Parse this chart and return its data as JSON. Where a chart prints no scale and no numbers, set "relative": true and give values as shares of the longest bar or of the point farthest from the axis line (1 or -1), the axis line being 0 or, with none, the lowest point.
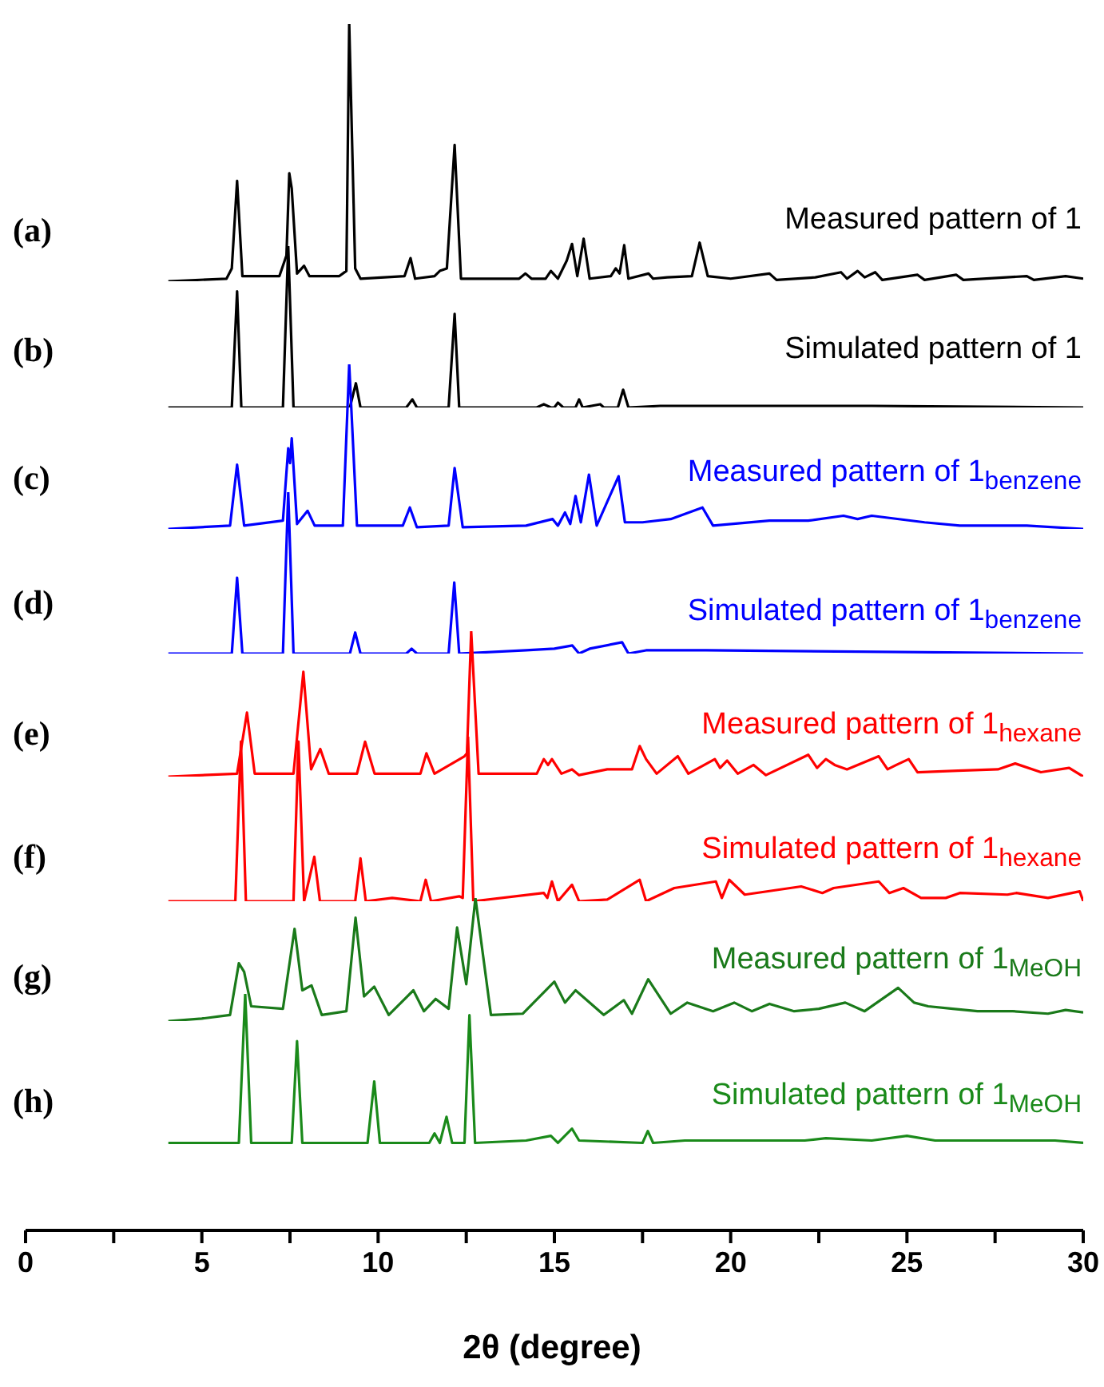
{
  "chart_data": [
    {
      "type": "line",
      "title": "(a)",
      "relative": true,
      "xlim": [
        0,
        30
      ],
      "tick_labels": false,
      "x": [
        4.05,
        5.7,
        5.85,
        6.0,
        6.15,
        7.2,
        7.4,
        7.48,
        7.55,
        7.7,
        7.9,
        8.05,
        8.9,
        9.1,
        9.18,
        9.35,
        9.5,
        10.75,
        10.92,
        11.05,
        11.6,
        11.75,
        11.95,
        12.17,
        12.35,
        14.0,
        14.18,
        14.35,
        14.75,
        14.9,
        15.1,
        15.35,
        15.5,
        15.65,
        15.83,
        16.0,
        16.6,
        16.74,
        16.85,
        16.98,
        17.1,
        17.67,
        17.8,
        18.2,
        18.9,
        19.12,
        19.35,
        20.0,
        21.1,
        21.3,
        22.4,
        23.13,
        23.3,
        23.6,
        23.8,
        24.1,
        24.3,
        25.3,
        25.5,
        26.4,
        26.6,
        28.4,
        28.6,
        29.5,
        30
      ],
      "series": [
        {
          "name": "Measured pattern of 1",
          "color": "#000000",
          "values": [
            0,
            0.01,
            0.05,
            0.39,
            0.02,
            0.02,
            0.1,
            0.42,
            0.36,
            0.03,
            0.06,
            0.02,
            0.02,
            0.04,
            1.0,
            0.05,
            0.01,
            0.02,
            0.09,
            0.01,
            0.02,
            0.04,
            0.05,
            0.53,
            0.01,
            0.01,
            0.03,
            0.01,
            0.01,
            0.04,
            0.01,
            0.08,
            0.145,
            0.02,
            0.165,
            0.01,
            0.02,
            0.05,
            0.03,
            0.14,
            0.01,
            0.03,
            0.01,
            0.015,
            0.02,
            0.15,
            0.02,
            0.01,
            0.03,
            0.005,
            0.015,
            0.035,
            0.01,
            0.04,
            0.015,
            0.035,
            0.005,
            0.025,
            0.005,
            0.025,
            0.005,
            0.02,
            0.005,
            0.02,
            0.01
          ]
        }
      ]
    },
    {
      "type": "line",
      "title": "(b)",
      "relative": true,
      "xlim": [
        0,
        30
      ],
      "tick_labels": false,
      "x": [
        4.05,
        5.85,
        6.0,
        6.12,
        7.3,
        7.45,
        7.6,
        9.2,
        9.37,
        9.5,
        10.8,
        10.97,
        11.1,
        12.0,
        12.17,
        12.3,
        14.5,
        14.7,
        14.9,
        15.0,
        15.1,
        15.25,
        15.6,
        15.7,
        15.8,
        16.3,
        16.4,
        16.8,
        16.95,
        17.1,
        18.0,
        19.5,
        24.0,
        30
      ],
      "series": [
        {
          "name": "Simulated pattern of 1",
          "color": "#000000",
          "values": [
            0,
            0,
            0.72,
            0,
            0,
            1,
            0,
            0,
            0.15,
            0,
            0,
            0.05,
            0,
            0,
            0.58,
            0,
            0,
            0.02,
            0,
            0,
            0.03,
            0,
            0,
            0.05,
            0,
            0.02,
            0,
            0,
            0.11,
            0,
            0.01,
            0.01,
            0.01,
            0
          ]
        }
      ]
    },
    {
      "type": "line",
      "title": "(c)",
      "relative": true,
      "xlim": [
        0,
        30
      ],
      "tick_labels": false,
      "x": [
        4.05,
        5.8,
        6.0,
        6.2,
        7.3,
        7.45,
        7.5,
        7.55,
        7.7,
        8.0,
        8.2,
        9.0,
        9.18,
        9.4,
        10.7,
        10.9,
        11.1,
        12.0,
        12.17,
        12.4,
        14.2,
        14.95,
        15.1,
        15.3,
        15.45,
        15.6,
        15.75,
        15.98,
        16.2,
        16.82,
        17.0,
        17.5,
        18.3,
        19.2,
        19.5,
        21.1,
        21.8,
        22.2,
        23.2,
        23.6,
        24.0,
        25.5,
        26.5,
        28.4,
        30
      ],
      "series": [
        {
          "name": "Measured pattern of 1$_{benzene}$",
          "color": "#0000ff",
          "values": [
            0,
            0.02,
            0.39,
            0.02,
            0.05,
            0.49,
            0.4,
            0.55,
            0.03,
            0.11,
            0.02,
            0.02,
            1,
            0.02,
            0.02,
            0.13,
            0.01,
            0.02,
            0.37,
            0.01,
            0.02,
            0.06,
            0.02,
            0.1,
            0.03,
            0.2,
            0.04,
            0.33,
            0.02,
            0.32,
            0.04,
            0.04,
            0.06,
            0.13,
            0.02,
            0.05,
            0.05,
            0.05,
            0.08,
            0.06,
            0.08,
            0.04,
            0.02,
            0.02,
            0
          ]
        }
      ]
    },
    {
      "type": "line",
      "title": "(d)",
      "relative": true,
      "xlim": [
        0,
        30
      ],
      "tick_labels": false,
      "x": [
        4.05,
        5.85,
        6.0,
        6.15,
        7.3,
        7.45,
        7.6,
        9.2,
        9.35,
        9.5,
        10.8,
        10.95,
        11.1,
        12.0,
        12.16,
        12.3,
        14.2,
        15.0,
        15.51,
        15.7,
        16.0,
        16.92,
        17.1,
        17.6,
        18.3,
        19.3,
        30
      ],
      "series": [
        {
          "name": "Simulated pattern of 1$_{benzene}$",
          "color": "#0000ff",
          "values": [
            0,
            0,
            0.47,
            0,
            0,
            1,
            0,
            0,
            0.13,
            0,
            0,
            0.03,
            0,
            0,
            0.44,
            0,
            0.02,
            0.03,
            0.05,
            0,
            0.03,
            0.07,
            0,
            0.02,
            0.02,
            0.02,
            0
          ]
        }
      ]
    },
    {
      "type": "line",
      "title": "(e)",
      "relative": true,
      "xlim": [
        0,
        30
      ],
      "tick_labels": false,
      "x": [
        4.05,
        6.0,
        6.28,
        6.5,
        7.6,
        7.88,
        8.1,
        8.36,
        8.6,
        9.4,
        9.63,
        9.9,
        11.2,
        11.37,
        11.6,
        12.45,
        12.52,
        12.64,
        12.85,
        14.5,
        14.7,
        14.82,
        14.93,
        15.2,
        15.5,
        15.7,
        16.5,
        17.2,
        17.42,
        17.6,
        17.9,
        18.5,
        18.8,
        19.55,
        19.7,
        19.9,
        20.2,
        20.65,
        21.0,
        22.2,
        22.45,
        22.7,
        22.95,
        23.3,
        24.2,
        24.45,
        24.7,
        25.05,
        25.3,
        26.44,
        27.58,
        28.07,
        28.8,
        29.6,
        30
      ],
      "series": [
        {
          "name": "Measured pattern of 1$_{hexane}$",
          "color": "#ff0000",
          "values": [
            0,
            0.02,
            0.44,
            0.02,
            0.02,
            0.72,
            0.05,
            0.19,
            0.02,
            0.02,
            0.24,
            0.02,
            0.02,
            0.16,
            0.02,
            0.14,
            0.16,
            1,
            0.02,
            0.02,
            0.12,
            0.08,
            0.12,
            0.02,
            0.05,
            0.01,
            0.05,
            0.05,
            0.21,
            0.12,
            0.02,
            0.14,
            0.02,
            0.12,
            0.06,
            0.11,
            0.02,
            0.08,
            0.01,
            0.15,
            0.06,
            0.12,
            0.08,
            0.05,
            0.14,
            0.05,
            0.08,
            0.12,
            0.03,
            0.04,
            0.05,
            0.09,
            0.03,
            0.06,
            0
          ]
        }
      ]
    },
    {
      "type": "line",
      "title": "(f)",
      "relative": true,
      "xlim": [
        0,
        30
      ],
      "tick_labels": false,
      "x": [
        4.05,
        5.95,
        6.11,
        6.25,
        7.6,
        7.74,
        7.9,
        8.19,
        8.35,
        9.35,
        9.5,
        9.65,
        10.4,
        11.2,
        11.35,
        11.5,
        12.3,
        12.4,
        12.55,
        12.7,
        14.7,
        14.8,
        14.93,
        15.1,
        15.5,
        15.7,
        16.5,
        17.42,
        17.6,
        18.4,
        19.58,
        19.75,
        19.96,
        20.4,
        22.0,
        22.6,
        22.92,
        24.2,
        24.5,
        24.9,
        25.4,
        26.1,
        26.5,
        27.85,
        28.1,
        29.0,
        29.9,
        30
      ],
      "series": [
        {
          "name": "Simulated pattern of 1$_{hexane}$",
          "color": "#ff0000",
          "values": [
            0,
            0,
            0.97,
            0,
            0,
            0.97,
            0,
            0.27,
            0,
            0,
            0.26,
            0,
            0.02,
            0,
            0.13,
            0,
            0.03,
            0.02,
            1,
            0,
            0.05,
            0.02,
            0.12,
            0,
            0.1,
            0,
            0.01,
            0.13,
            0,
            0.08,
            0.12,
            0.02,
            0.13,
            0.04,
            0.09,
            0.05,
            0.08,
            0.12,
            0.05,
            0.08,
            0.02,
            0.02,
            0.05,
            0.04,
            0.05,
            0.02,
            0.06,
            0
          ]
        }
      ]
    },
    {
      "type": "line",
      "title": "(g)",
      "relative": true,
      "xlim": [
        0,
        30
      ],
      "tick_labels": false,
      "x": [
        4.05,
        5.0,
        5.8,
        6.05,
        6.2,
        6.4,
        7.3,
        7.63,
        7.85,
        8.11,
        8.4,
        9.1,
        9.36,
        9.6,
        9.89,
        10.3,
        11.0,
        11.3,
        11.63,
        12.0,
        12.24,
        12.5,
        12.76,
        13.2,
        14.1,
        15.0,
        15.3,
        15.6,
        16.4,
        16.97,
        17.2,
        17.66,
        18.3,
        18.77,
        19.5,
        20.1,
        20.6,
        21.1,
        21.8,
        22.5,
        23.25,
        23.8,
        24.75,
        25.2,
        25.6,
        26.3,
        27.0,
        28.0,
        29.0,
        29.5,
        30
      ],
      "series": [
        {
          "name": "Measured pattern of 1$_{MeOH}$",
          "color": "#1a7a1a",
          "values": [
            0,
            0.02,
            0.05,
            0.47,
            0.4,
            0.12,
            0.1,
            0.75,
            0.25,
            0.29,
            0.05,
            0.08,
            0.84,
            0.2,
            0.28,
            0.05,
            0.25,
            0.08,
            0.18,
            0.1,
            0.76,
            0.3,
            1,
            0.05,
            0.06,
            0.32,
            0.15,
            0.25,
            0.05,
            0.17,
            0.06,
            0.34,
            0.06,
            0.15,
            0.08,
            0.15,
            0.08,
            0.14,
            0.08,
            0.1,
            0.15,
            0.08,
            0.27,
            0.15,
            0.12,
            0.1,
            0.08,
            0.08,
            0.06,
            0.09,
            0.07
          ]
        }
      ]
    },
    {
      "type": "line",
      "title": "(h)",
      "relative": true,
      "xlim": [
        0,
        30
      ],
      "xticks": [
        0,
        {
          "value": 2.5,
          "label": null
        },
        5,
        {
          "value": 7.5,
          "label": null
        },
        10,
        {
          "value": 12.5,
          "label": null
        },
        15,
        {
          "value": 17.5,
          "label": null
        },
        20,
        {
          "value": 22.5,
          "label": null
        },
        25,
        {
          "value": 27.5,
          "label": null
        },
        30
      ],
      "xlabel": "2θ (degree)",
      "x": [
        4.05,
        6.05,
        6.23,
        6.4,
        7.55,
        7.7,
        7.85,
        9.7,
        9.89,
        10.05,
        11.45,
        11.6,
        11.75,
        11.94,
        12.1,
        12.45,
        12.59,
        12.75,
        14.2,
        14.9,
        15.1,
        15.5,
        15.7,
        17.5,
        17.65,
        17.8,
        18.7,
        20.3,
        21.3,
        22.1,
        22.7,
        24.0,
        25.0,
        25.8,
        26.4,
        27.0,
        28.3,
        29.2,
        30
      ],
      "series": [
        {
          "name": "Simulated pattern of 1$_{MeOH}$",
          "color": "#1a8a1a",
          "values": [
            0.37,
            0.37,
            1,
            0.37,
            0.37,
            0.8,
            0.37,
            0.37,
            0.63,
            0.37,
            0.37,
            0.41,
            0.37,
            0.48,
            0.37,
            0.37,
            0.91,
            0.37,
            0.38,
            0.4,
            0.37,
            0.43,
            0.38,
            0.37,
            0.42,
            0.37,
            0.38,
            0.38,
            0.38,
            0.38,
            0.39,
            0.38,
            0.4,
            0.38,
            0.38,
            0.38,
            0.38,
            0.38,
            0.37
          ]
        }
      ]
    }
  ]
}
